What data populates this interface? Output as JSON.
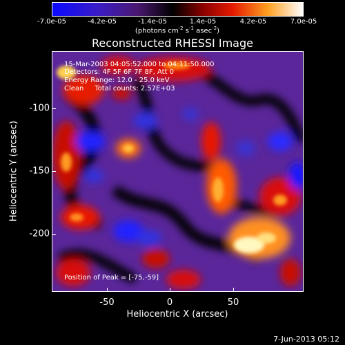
{
  "colorbar": {
    "tick_labels": [
      "-7.0e-05",
      "-4.2e-05",
      "-1.4e-05",
      "1.4e-05",
      "4.2e-05",
      "7.0e-05"
    ],
    "units_text": "(photons cm",
    "units_sup1": "-2",
    "units_mid": " s",
    "units_sup2": "-1",
    "units_end": " asec",
    "units_sup3": "-2",
    "units_close": ")"
  },
  "title": "Reconstructed RHESSI Image",
  "info": {
    "line1": "15-Mar-2003 04:05:52.000 to 04:11:50.000",
    "line2": "Detectors: 4F 5F 6F 7F 8F, Att 0",
    "line3": "Energy Range: 12.0 - 25.0 keV",
    "line4": "Clean     Total counts: 2.57E+03"
  },
  "peak": "Position of Peak = [-75,-59]",
  "axes": {
    "xlabel": "Heliocentric X (arcsec)",
    "ylabel": "Heliocentric Y (arcsec)",
    "x_ticks": [
      "-50",
      "0",
      "50"
    ],
    "y_ticks": [
      "-100",
      "-150",
      "-200"
    ]
  },
  "footer": "7-Jun-2013 05:12",
  "colors": {
    "blue": "#2020ff",
    "purple": "#6a2ea8",
    "black": "#000000",
    "red": "#d81010",
    "orange": "#ff8a10",
    "yellow": "#fff8c0"
  }
}
